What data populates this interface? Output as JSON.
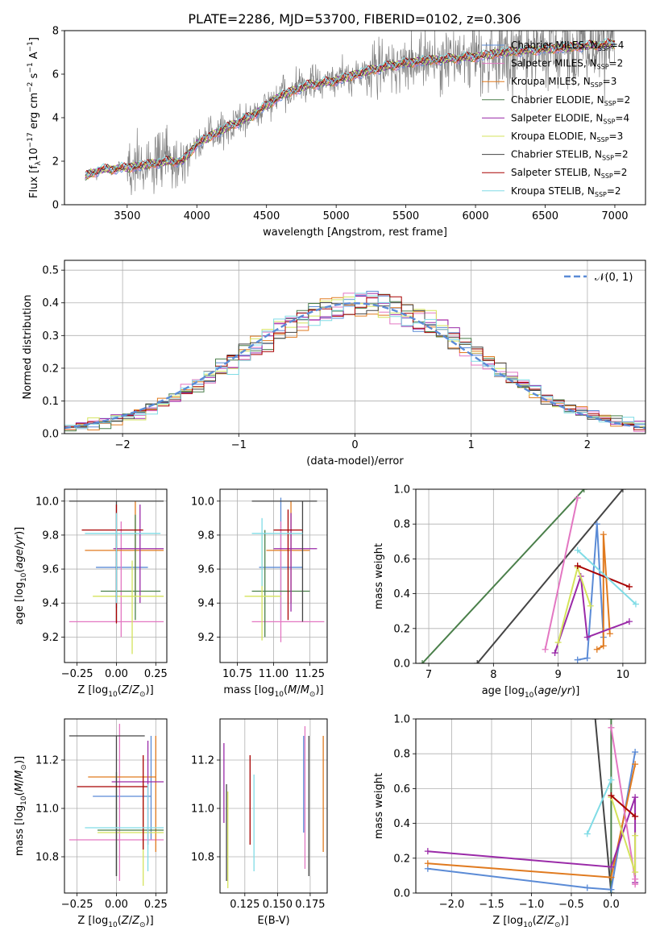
{
  "figure": {
    "title": "PLATE=2286, MJD=53700, FIBERID=0102, z=0.306"
  },
  "models": [
    {
      "name": "Chabrier MILES",
      "n": "4",
      "color": "#4c72b0",
      "line": "#5b8bd6"
    },
    {
      "name": "Salpeter MILES",
      "n": "2",
      "color": "#e377c2",
      "line": "#e377c2"
    },
    {
      "name": "Kroupa MILES",
      "n": "3",
      "color": "#e07a1f",
      "line": "#e07a1f"
    },
    {
      "name": "Chabrier ELODIE",
      "n": "2",
      "color": "#4a7f4a",
      "line": "#4a7f4a"
    },
    {
      "name": "Salpeter ELODIE",
      "n": "4",
      "color": "#9a2aa8",
      "line": "#9a2aa8"
    },
    {
      "name": "Kroupa ELODIE",
      "n": "3",
      "color": "#d4e35c",
      "line": "#d4e35c"
    },
    {
      "name": "Chabrier STELIB",
      "n": "2",
      "color": "#444444",
      "line": "#444444"
    },
    {
      "name": "Salpeter STELIB",
      "n": "2",
      "color": "#a80000",
      "line": "#a80000"
    },
    {
      "name": "Kroupa STELIB",
      "n": "2",
      "color": "#80dce6",
      "line": "#80dce6"
    }
  ],
  "chart_data": [
    {
      "id": "spectrum",
      "type": "line",
      "xlabel": "wavelength [Angstrom, rest frame]",
      "ylabel": "Flux [f",
      "xlim": [
        3050,
        7220
      ],
      "ylim": [
        0,
        8
      ],
      "xticks": [
        3500,
        4000,
        4500,
        5000,
        5500,
        6000,
        6500,
        7000
      ],
      "yticks": [
        0,
        2,
        4,
        6,
        8
      ],
      "data_color": "#808080",
      "continuum": {
        "x": [
          3200,
          3300,
          3500,
          3700,
          3800,
          3900,
          4000,
          4200,
          4400,
          4600,
          4800,
          5000,
          5200,
          5400,
          5600,
          5800,
          6000,
          6200,
          6400,
          6600,
          6800,
          7000
        ],
        "y": [
          1.3,
          1.6,
          1.7,
          1.9,
          2.0,
          2.0,
          2.8,
          3.5,
          4.1,
          5.0,
          5.5,
          5.7,
          6.1,
          6.4,
          6.6,
          6.7,
          6.8,
          7.0,
          7.1,
          7.2,
          7.3,
          7.4
        ]
      },
      "legend_position": "upper right"
    },
    {
      "id": "residuals",
      "type": "histogram",
      "xlabel": "(data-model)/error",
      "ylabel": "Normed distribution",
      "xlim": [
        -2.5,
        2.5
      ],
      "ylim": [
        0,
        0.53
      ],
      "xticks": [
        -2,
        -1,
        0,
        1,
        2
      ],
      "yticks": [
        0.0,
        0.1,
        0.2,
        0.3,
        0.4,
        0.5
      ],
      "grid": true,
      "legend": [
        "𝒩(0, 1)"
      ],
      "legend_position": "upper right",
      "reference": {
        "mu": 0,
        "sigma": 1,
        "color": "#5b8bd6"
      },
      "bin_width": 0.1
    },
    {
      "id": "age_vs_Z",
      "type": "errorbar",
      "xlabel": "Z [log",
      "ylabel": "age  [log",
      "xlim": [
        -0.33,
        0.32
      ],
      "ylim": [
        9.05,
        10.07
      ],
      "xticks": [
        -0.25,
        0.0,
        0.25
      ],
      "xticklabels": [
        "−0.25",
        "0.00",
        "0.25"
      ],
      "yticks": [
        9.2,
        9.4,
        9.6,
        9.8,
        10.0
      ],
      "grid": true,
      "points": [
        {
          "m": 0,
          "x": 0.0,
          "xe": [
            -0.13,
            0.2
          ],
          "y": 9.61,
          "ye": [
            9.37,
            9.8
          ]
        },
        {
          "m": 1,
          "x": 0.03,
          "xe": [
            -0.3,
            0.3
          ],
          "y": 9.29,
          "ye": [
            9.2,
            9.88
          ]
        },
        {
          "m": 2,
          "x": 0.12,
          "xe": [
            -0.2,
            0.3
          ],
          "y": 9.71,
          "ye": [
            9.44,
            10.0
          ]
        },
        {
          "m": 3,
          "x": 0.12,
          "xe": [
            -0.1,
            0.28
          ],
          "y": 9.47,
          "ye": [
            9.3,
            9.92
          ]
        },
        {
          "m": 4,
          "x": 0.15,
          "xe": [
            -0.02,
            0.3
          ],
          "y": 9.72,
          "ye": [
            9.4,
            9.98
          ]
        },
        {
          "m": 5,
          "x": 0.1,
          "xe": [
            -0.15,
            0.3
          ],
          "y": 9.44,
          "ye": [
            9.1,
            9.65
          ]
        },
        {
          "m": 6,
          "x": 0.0,
          "xe": [
            -0.3,
            0.3
          ],
          "y": 10.0,
          "ye": [
            9.29,
            10.0
          ]
        },
        {
          "m": 7,
          "x": 0.0,
          "xe": [
            -0.22,
            0.17
          ],
          "y": 9.83,
          "ye": [
            9.28,
            9.98
          ]
        },
        {
          "m": 8,
          "x": 0.0,
          "xe": [
            -0.2,
            0.28
          ],
          "y": 9.81,
          "ye": [
            9.4,
            9.93
          ]
        }
      ]
    },
    {
      "id": "age_vs_mass",
      "type": "errorbar",
      "xlabel": "mass [log",
      "ylabel": "",
      "xlim": [
        10.63,
        11.37
      ],
      "ylim": [
        9.05,
        10.07
      ],
      "xticks": [
        10.75,
        11.0,
        11.25
      ],
      "xticklabels": [
        "10.75",
        "11.00",
        "11.25"
      ],
      "yticks": [
        9.2,
        9.4,
        9.6,
        9.8,
        10.0
      ],
      "grid": true,
      "points": [
        {
          "m": 0,
          "x": 11.05,
          "xe": [
            10.9,
            11.2
          ],
          "y": 9.61,
          "ye": [
            9.3,
            10.02
          ]
        },
        {
          "m": 1,
          "x": 11.05,
          "xe": [
            10.85,
            11.35
          ],
          "y": 9.29,
          "ye": [
            9.17,
            9.88
          ]
        },
        {
          "m": 2,
          "x": 11.12,
          "xe": [
            10.95,
            11.25
          ],
          "y": 9.71,
          "ye": [
            9.4,
            10.0
          ]
        },
        {
          "m": 3,
          "x": 10.94,
          "xe": [
            10.85,
            11.25
          ],
          "y": 9.47,
          "ye": [
            9.2,
            9.83
          ]
        },
        {
          "m": 4,
          "x": 11.12,
          "xe": [
            11.0,
            11.3
          ],
          "y": 9.72,
          "ye": [
            9.35,
            9.93
          ]
        },
        {
          "m": 5,
          "x": 10.92,
          "xe": [
            10.8,
            11.05
          ],
          "y": 9.44,
          "ye": [
            9.18,
            9.8
          ]
        },
        {
          "m": 6,
          "x": 11.2,
          "xe": [
            10.85,
            11.3
          ],
          "y": 10.0,
          "ye": [
            9.29,
            10.0
          ]
        },
        {
          "m": 7,
          "x": 11.1,
          "xe": [
            11.0,
            11.2
          ],
          "y": 9.83,
          "ye": [
            9.3,
            9.95
          ]
        },
        {
          "m": 8,
          "x": 10.92,
          "xe": [
            10.85,
            11.2
          ],
          "y": 9.81,
          "ye": [
            9.5,
            9.9
          ]
        }
      ]
    },
    {
      "id": "mass_weight_vs_age",
      "type": "line",
      "xlabel": "age  [log",
      "ylabel": "mass weight",
      "xlim": [
        6.8,
        10.35
      ],
      "ylim": [
        0,
        1.0
      ],
      "xticks": [
        7,
        8,
        9,
        10
      ],
      "yticks": [
        0.0,
        0.2,
        0.4,
        0.6,
        0.8,
        1.0
      ],
      "grid": true,
      "series": [
        {
          "m": 6,
          "x": [
            7.75,
            10.0
          ],
          "y": [
            0.0,
            1.0
          ]
        },
        {
          "m": 3,
          "x": [
            6.9,
            9.4
          ],
          "y": [
            0.0,
            1.0
          ]
        },
        {
          "m": 1,
          "x": [
            8.8,
            9.3
          ],
          "y": [
            0.08,
            0.95
          ]
        },
        {
          "m": 0,
          "x": [
            9.3,
            9.45,
            9.6,
            9.7
          ],
          "y": [
            0.02,
            0.03,
            0.8,
            0.15
          ]
        },
        {
          "m": 2,
          "x": [
            9.6,
            9.7,
            9.7,
            9.8
          ],
          "y": [
            0.08,
            0.1,
            0.74,
            0.17
          ]
        },
        {
          "m": 4,
          "x": [
            8.95,
            9.35,
            9.45,
            10.1
          ],
          "y": [
            0.06,
            0.5,
            0.15,
            0.24
          ]
        },
        {
          "m": 5,
          "x": [
            9.0,
            9.3,
            9.5
          ],
          "y": [
            0.12,
            0.55,
            0.33
          ]
        },
        {
          "m": 7,
          "x": [
            9.3,
            10.1
          ],
          "y": [
            0.56,
            0.44
          ]
        },
        {
          "m": 8,
          "x": [
            9.3,
            10.2
          ],
          "y": [
            0.65,
            0.34
          ]
        }
      ]
    },
    {
      "id": "mass_vs_Z",
      "type": "errorbar",
      "xlabel": "Z [log",
      "ylabel": "mass [log",
      "xlim": [
        -0.33,
        0.32
      ],
      "ylim": [
        10.65,
        11.37
      ],
      "xticks": [
        -0.25,
        0.0,
        0.25
      ],
      "xticklabels": [
        "−0.25",
        "0.00",
        "0.25"
      ],
      "yticks": [
        10.8,
        11.0,
        11.2
      ],
      "grid": true,
      "points": [
        {
          "m": 0,
          "x": 0.22,
          "xe": [
            -0.15,
            0.22
          ],
          "y": 11.05,
          "ye": [
            10.87,
            11.3
          ]
        },
        {
          "m": 1,
          "x": 0.02,
          "xe": [
            -0.3,
            0.3
          ],
          "y": 10.87,
          "ye": [
            10.7,
            11.35
          ]
        },
        {
          "m": 2,
          "x": 0.25,
          "xe": [
            -0.18,
            0.25
          ],
          "y": 11.13,
          "ye": [
            10.82,
            11.3
          ]
        },
        {
          "m": 3,
          "x": 0.0,
          "xe": [
            -0.12,
            0.3
          ],
          "y": 10.91,
          "ye": [
            10.72,
            11.15
          ]
        },
        {
          "m": 4,
          "x": 0.2,
          "xe": [
            -0.03,
            0.3
          ],
          "y": 11.11,
          "ye": [
            10.85,
            11.28
          ]
        },
        {
          "m": 5,
          "x": 0.17,
          "xe": [
            -0.12,
            0.3
          ],
          "y": 10.9,
          "ye": [
            10.68,
            11.1
          ]
        },
        {
          "m": 6,
          "x": 0.0,
          "xe": [
            -0.3,
            0.18
          ],
          "y": 11.3,
          "ye": [
            10.72,
            11.3
          ]
        },
        {
          "m": 7,
          "x": 0.17,
          "xe": [
            -0.25,
            0.2
          ],
          "y": 11.09,
          "ye": [
            10.83,
            11.22
          ]
        },
        {
          "m": 8,
          "x": 0.2,
          "xe": [
            -0.2,
            0.3
          ],
          "y": 10.92,
          "ye": [
            10.74,
            11.1
          ]
        }
      ]
    },
    {
      "id": "mass_vs_ebv",
      "type": "errorbar",
      "xlabel": "E(B-V)",
      "ylabel": "",
      "xlim": [
        0.106,
        0.188
      ],
      "ylim": [
        10.65,
        11.37
      ],
      "xticks": [
        0.125,
        0.15,
        0.175
      ],
      "xticklabels": [
        "0.125",
        "0.150",
        "0.175"
      ],
      "yticks": [
        10.8,
        11.0,
        11.2
      ],
      "grid": true,
      "points": [
        {
          "m": 0,
          "x": 0.17,
          "ye": [
            10.9,
            11.3
          ]
        },
        {
          "m": 1,
          "x": 0.171,
          "ye": [
            10.75,
            11.34
          ]
        },
        {
          "m": 2,
          "x": 0.185,
          "ye": [
            10.82,
            11.3
          ]
        },
        {
          "m": 4,
          "x": 0.109,
          "ye": [
            10.94,
            11.27
          ]
        },
        {
          "m": 5,
          "x": 0.112,
          "ye": [
            10.67,
            11.07
          ]
        },
        {
          "m": 6,
          "x": 0.111,
          "ye": [
            10.7,
            11.1
          ]
        },
        {
          "m": 7,
          "x": 0.129,
          "ye": [
            10.85,
            11.22
          ]
        },
        {
          "m": 8,
          "x": 0.132,
          "ye": [
            10.74,
            11.14
          ]
        },
        {
          "m": 6,
          "x": 0.174,
          "ye": [
            10.72,
            11.3
          ]
        }
      ]
    },
    {
      "id": "mass_weight_vs_Z",
      "type": "line",
      "xlabel": "Z [log",
      "ylabel": "mass weight",
      "xlim": [
        -2.45,
        0.43
      ],
      "ylim": [
        0,
        1.0
      ],
      "xticks": [
        -2.0,
        -1.5,
        -1.0,
        -0.5,
        0.0
      ],
      "xticklabels": [
        "−2.0",
        "−1.5",
        "−1.0",
        "−0.5",
        "0.0"
      ],
      "yticks": [
        0.0,
        0.2,
        0.4,
        0.6,
        0.8,
        1.0
      ],
      "grid": true,
      "series": [
        {
          "m": 6,
          "x": [
            -0.2,
            0.0
          ],
          "y": [
            1.0,
            0.0
          ]
        },
        {
          "m": 3,
          "x": [
            0.0,
            0.0
          ],
          "y": [
            0.0,
            1.0
          ]
        },
        {
          "m": 0,
          "x": [
            -2.3,
            -0.3,
            0.0,
            0.3
          ],
          "y": [
            0.14,
            0.03,
            0.02,
            0.81
          ]
        },
        {
          "m": 2,
          "x": [
            -2.3,
            0.0,
            0.3
          ],
          "y": [
            0.17,
            0.09,
            0.74
          ]
        },
        {
          "m": 4,
          "x": [
            -2.3,
            0.0,
            0.3,
            0.3
          ],
          "y": [
            0.24,
            0.15,
            0.55,
            0.06
          ]
        },
        {
          "m": 1,
          "x": [
            0.0,
            0.3,
            0.3
          ],
          "y": [
            0.95,
            0.08,
            0.05
          ]
        },
        {
          "m": 5,
          "x": [
            0.0,
            0.3,
            0.3
          ],
          "y": [
            0.55,
            0.12,
            0.33
          ]
        },
        {
          "m": 7,
          "x": [
            0.0,
            0.3
          ],
          "y": [
            0.56,
            0.44
          ]
        },
        {
          "m": 8,
          "x": [
            -0.3,
            0.0
          ],
          "y": [
            0.34,
            0.65
          ]
        }
      ]
    }
  ]
}
